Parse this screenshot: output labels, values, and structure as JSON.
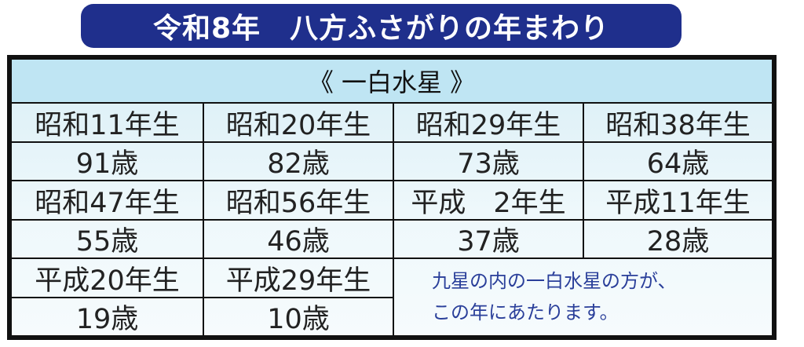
{
  "title": "令和8年　八方ふさがりの年まわり",
  "table": {
    "header": "《 一白水星 》",
    "rows": [
      {
        "years": [
          "昭和11年生",
          "昭和20年生",
          "昭和29年生",
          "昭和38年生"
        ],
        "ages": [
          "91歳",
          "82歳",
          "73歳",
          "64歳"
        ]
      },
      {
        "years": [
          "昭和47年生",
          "昭和56年生",
          "平成　2年生",
          "平成11年生"
        ],
        "ages": [
          "55歳",
          "46歳",
          "37歳",
          "28歳"
        ]
      },
      {
        "years": [
          "平成20年生",
          "平成29年生"
        ],
        "ages": [
          "19歳",
          "10歳"
        ]
      }
    ],
    "note": [
      "九星の内の一白水星の方が、",
      "この年にあたります。"
    ]
  },
  "colors": {
    "banner": "#1f2f8c",
    "header_bg": "#bfe5f3",
    "note_text": "#2a3f9a"
  }
}
